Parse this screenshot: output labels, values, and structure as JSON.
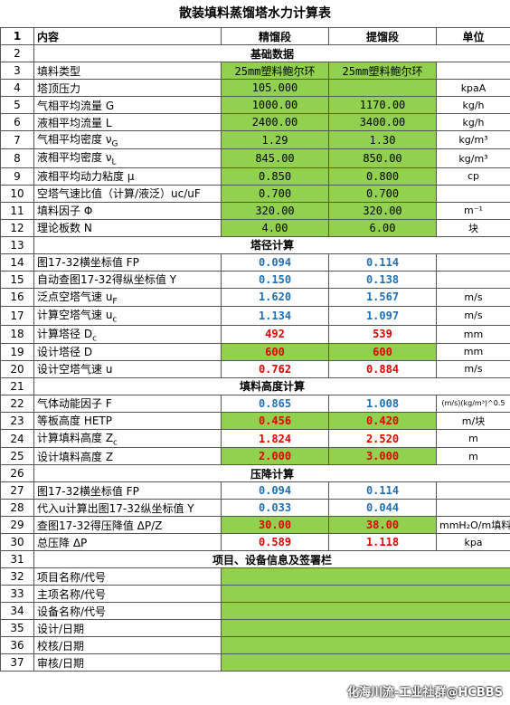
{
  "title": "散装填料蒸馏塔水力计算表",
  "header": {
    "row": "1",
    "cols": [
      "内容",
      "精馏段",
      "提馏段",
      "单位"
    ]
  },
  "rows": [
    {
      "row": "2",
      "section": "基础数据"
    },
    {
      "row": "3",
      "label": "填料类型",
      "values": [
        "25mm塑料鲍尔环",
        "25mm塑料鲍尔环"
      ],
      "fill": "#92d050",
      "color": "#000000"
    },
    {
      "row": "4",
      "label": "塔顶压力",
      "values": [
        "105.000",
        ""
      ],
      "unit": "kpaA",
      "fill": "#92d050",
      "color": "#000000"
    },
    {
      "row": "5",
      "label": "气相平均流量 G",
      "values": [
        "1000.00",
        "1170.00"
      ],
      "unit": "kg/h",
      "fill": "#92d050",
      "color": "#000000"
    },
    {
      "row": "6",
      "label": "液相平均流量 L",
      "values": [
        "2400.00",
        "3400.00"
      ],
      "unit": "kg/h",
      "fill": "#92d050",
      "color": "#000000"
    },
    {
      "row": "7",
      "label": "气相平均密度 ν",
      "sub": "G",
      "values": [
        "1.29",
        "1.30"
      ],
      "unit": "kg/m³",
      "fill": "#92d050",
      "color": "#000000"
    },
    {
      "row": "8",
      "label": "液相平均密度 ν",
      "sub": "L",
      "values": [
        "845.00",
        "850.00"
      ],
      "unit": "kg/m³",
      "fill": "#92d050",
      "color": "#000000"
    },
    {
      "row": "9",
      "label": "液相平均动力粘度 μ",
      "values": [
        "0.850",
        "0.800"
      ],
      "unit": "cp",
      "fill": "#92d050",
      "color": "#000000"
    },
    {
      "row": "10",
      "label": "空塔气速比值（计算/液泛）uc/uF",
      "values": [
        "0.700",
        "0.700"
      ],
      "fill": "#92d050",
      "color": "#000000"
    },
    {
      "row": "11",
      "label": "填料因子 Φ",
      "values": [
        "320.00",
        "320.00"
      ],
      "unit": "m⁻¹",
      "fill": "#92d050",
      "color": "#000000"
    },
    {
      "row": "12",
      "label": "理论板数 N",
      "values": [
        "4.00",
        "6.00"
      ],
      "unit": "块",
      "fill": "#92d050",
      "color": "#000000"
    },
    {
      "row": "13",
      "section": "塔径计算"
    },
    {
      "row": "14",
      "label": "图17-32横坐标值 FP",
      "values": [
        "0.094",
        "0.114"
      ],
      "fill": "#ffffff",
      "color": "#1f6fb5"
    },
    {
      "row": "15",
      "label": "自动查图17-32得纵坐标值 Y",
      "values": [
        "0.150",
        "0.138"
      ],
      "fill": "#ffffff",
      "color": "#1f6fb5"
    },
    {
      "row": "16",
      "label": "泛点空塔气速 u",
      "sub": "F",
      "values": [
        "1.620",
        "1.567"
      ],
      "unit": "m/s",
      "fill": "#ffffff",
      "color": "#1f6fb5"
    },
    {
      "row": "17",
      "label": "计算空塔气速 u",
      "sub": "c",
      "values": [
        "1.134",
        "1.097"
      ],
      "unit": "m/s",
      "fill": "#ffffff",
      "color": "#1f6fb5"
    },
    {
      "row": "18",
      "label": "计算塔径 D",
      "sub": "c",
      "values": [
        "492",
        "539"
      ],
      "unit": "mm",
      "fill": "#ffffff",
      "color": "#e00000"
    },
    {
      "row": "19",
      "label": "设计塔径 D",
      "values": [
        "600",
        "600"
      ],
      "unit": "mm",
      "fill": "#92d050",
      "color": "#e00000"
    },
    {
      "row": "20",
      "label": "设计空塔气速 u",
      "values": [
        "0.762",
        "0.884"
      ],
      "unit": "m/s",
      "fill": "#ffffff",
      "color": "#e00000"
    },
    {
      "row": "21",
      "section": "填料高度计算"
    },
    {
      "row": "22",
      "label": "气体动能因子 F",
      "values": [
        "0.865",
        "1.008"
      ],
      "unit": "(m/s)(kg/m³)^0.5",
      "fill": "#ffffff",
      "color": "#1f6fb5"
    },
    {
      "row": "23",
      "label": "等板高度 HETP",
      "values": [
        "0.456",
        "0.420"
      ],
      "unit": "m/块",
      "fill": "#92d050",
      "color": "#e00000"
    },
    {
      "row": "24",
      "label": "计算填料高度 Z",
      "sub": "c",
      "values": [
        "1.824",
        "2.520"
      ],
      "unit": "m",
      "fill": "#ffffff",
      "color": "#e00000"
    },
    {
      "row": "25",
      "label": "设计填料高度 Z",
      "values": [
        "2.000",
        "3.000"
      ],
      "unit": "m",
      "fill": "#92d050",
      "color": "#e00000"
    },
    {
      "row": "26",
      "section": "压降计算"
    },
    {
      "row": "27",
      "label": "图17-32横坐标值 FP",
      "values": [
        "0.094",
        "0.114"
      ],
      "fill": "#ffffff",
      "color": "#1f6fb5"
    },
    {
      "row": "28",
      "label": "代入u计算出图17-32纵坐标值 Y",
      "values": [
        "0.033",
        "0.044"
      ],
      "fill": "#ffffff",
      "color": "#1f6fb5"
    },
    {
      "row": "29",
      "label": "查图17-32得压降值 ΔP/Z",
      "values": [
        "30.00",
        "38.00"
      ],
      "unit": "mmH₂O/m填料",
      "fill": "#92d050",
      "color": "#e00000"
    },
    {
      "row": "30",
      "label": "总压降 ΔP",
      "values": [
        "0.589",
        "1.118"
      ],
      "unit": "kpa",
      "fill": "#ffffff",
      "color": "#e00000"
    },
    {
      "row": "31",
      "section": "项目、设备信息及签署栏"
    },
    {
      "row": "32",
      "label": "项目名称/代号",
      "fill": "#92d050",
      "merged": true
    },
    {
      "row": "33",
      "label": "主项名称/代号",
      "fill": "#92d050",
      "merged": true
    },
    {
      "row": "34",
      "label": "设备名称/代号",
      "fill": "#92d050",
      "merged": true
    },
    {
      "row": "35",
      "label": "设计/日期",
      "fill": "#92d050",
      "merged": true
    },
    {
      "row": "36",
      "label": "校核/日期",
      "fill": "#92d050",
      "merged": true
    },
    {
      "row": "37",
      "label": "审核/日期",
      "fill": "#92d050",
      "merged": true
    }
  ],
  "watermark": "化海川流-工业社群@HCBBS"
}
